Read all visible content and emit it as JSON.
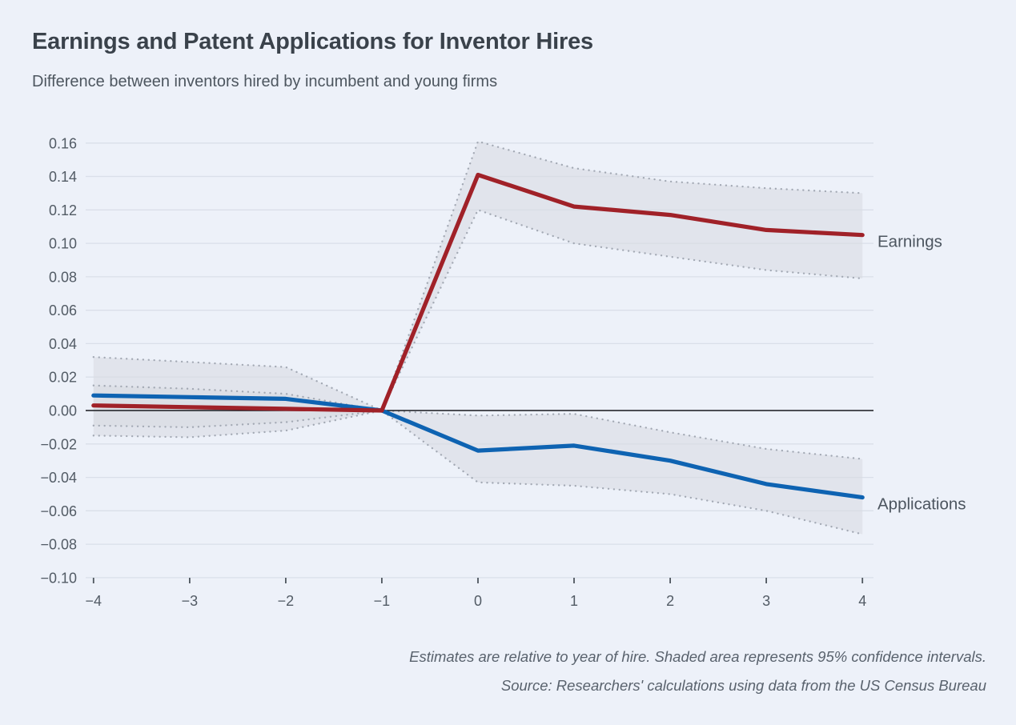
{
  "header": {
    "title": "Earnings and Patent Applications for Inventor Hires",
    "subtitle": "Difference between inventors hired by incumbent and young firms"
  },
  "footnotes": {
    "line1": "Estimates are relative to year of hire. Shaded area represents 95% confidence intervals.",
    "line2": "Source: Researchers' calculations using data from the US Census Bureau"
  },
  "chart_data": {
    "type": "line",
    "title": "Earnings and Patent Applications for Inventor Hires",
    "subtitle": "Difference between inventors hired by incumbent and young firms",
    "x": [
      -4,
      -3,
      -2,
      -1,
      0,
      1,
      2,
      3,
      4
    ],
    "x_tick_labels": [
      "−4",
      "−3",
      "−2",
      "−1",
      "0",
      "1",
      "2",
      "3",
      "4"
    ],
    "y_ticks": [
      0.16,
      0.14,
      0.12,
      0.1,
      0.08,
      0.06,
      0.04,
      0.02,
      0.0,
      -0.02,
      -0.04,
      -0.06,
      -0.08,
      -0.1
    ],
    "ylim": [
      -0.1,
      0.16
    ],
    "xlabel": "",
    "ylabel": "",
    "grid": true,
    "zero_line": true,
    "legend_position": "labels-right-of-line-ends",
    "confidence_note": "Shaded area with dotted boundaries = 95% confidence interval",
    "series": [
      {
        "name": "Earnings",
        "color": "#a02128",
        "values": [
          0.003,
          0.002,
          0.001,
          0.0,
          0.141,
          0.122,
          0.117,
          0.108,
          0.105
        ],
        "ci_upper": [
          0.015,
          0.013,
          0.01,
          0.0,
          0.161,
          0.145,
          0.137,
          0.133,
          0.13
        ],
        "ci_lower": [
          -0.009,
          -0.01,
          -0.007,
          0.0,
          0.12,
          0.1,
          0.092,
          0.084,
          0.079
        ]
      },
      {
        "name": "Applications",
        "color": "#0e63b2",
        "values": [
          0.009,
          0.008,
          0.007,
          0.0,
          -0.024,
          -0.021,
          -0.03,
          -0.044,
          -0.052
        ],
        "ci_upper": [
          0.032,
          0.029,
          0.026,
          0.0,
          -0.003,
          -0.002,
          -0.013,
          -0.023,
          -0.029
        ],
        "ci_lower": [
          -0.015,
          -0.016,
          -0.012,
          0.0,
          -0.043,
          -0.045,
          -0.05,
          -0.06,
          -0.074
        ]
      }
    ]
  },
  "style": {
    "background": "#edf1f9",
    "band_fill": "#d9dce2",
    "band_border": "#a3a9b4",
    "grid_color": "#dadfe9",
    "zero_line_color": "#16191d",
    "axis_text_color": "#525b65",
    "tick_mark_color": "#4e565e",
    "series_label_color": "#4c555f",
    "title_color": "#3a424b",
    "subtitle_color": "#4d565f",
    "note_color": "#59626d"
  }
}
